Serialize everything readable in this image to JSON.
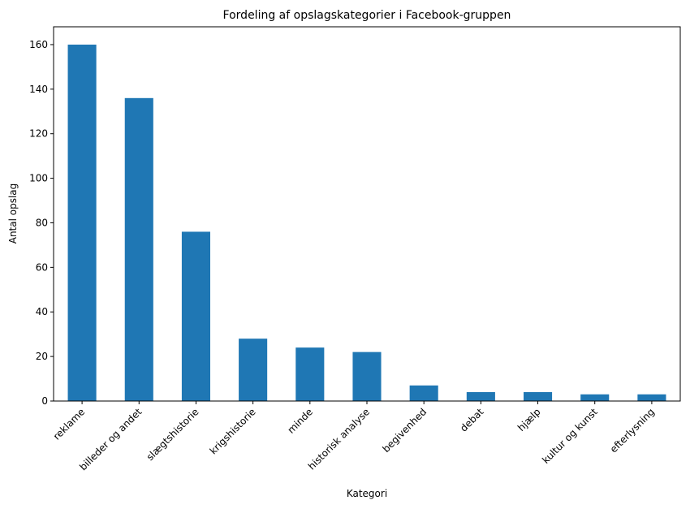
{
  "chart_data": {
    "type": "bar",
    "title": "Fordeling af opslagskategorier i Facebook-gruppen",
    "xlabel": "Kategori",
    "ylabel": "Antal opslag",
    "categories": [
      "reklame",
      "billeder og andet",
      "slægtshistorie",
      "krigshistorie",
      "minde",
      "historisk analyse",
      "begivenhed",
      "debat",
      "hjælp",
      "kultur og kunst",
      "efterlysning"
    ],
    "values": [
      160,
      136,
      76,
      28,
      24,
      22,
      7,
      4,
      4,
      3,
      3
    ],
    "ylim": [
      0,
      168
    ],
    "yticks": [
      0,
      20,
      40,
      60,
      80,
      100,
      120,
      140,
      160
    ],
    "tick_rotation": 45,
    "bar_color": "#1f77b4",
    "grid": false,
    "legend": "none"
  }
}
